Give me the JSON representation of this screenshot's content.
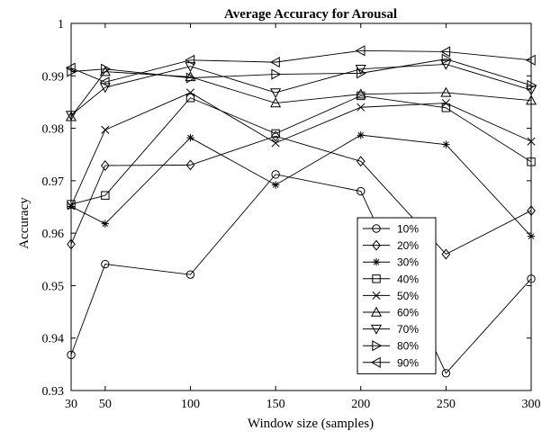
{
  "chart_data": {
    "type": "line",
    "title": "Average Accuracy for Arousal",
    "xlabel": "Window size (samples)",
    "ylabel": "Accuracy",
    "x": [
      30,
      50,
      100,
      150,
      200,
      250,
      300
    ],
    "xlim": [
      30,
      300
    ],
    "ylim": [
      0.93,
      1.0
    ],
    "xticks": [
      "30",
      "50",
      "100",
      "150",
      "200",
      "250",
      "300"
    ],
    "yticks": [
      "0.93",
      "0.94",
      "0.95",
      "0.96",
      "0.97",
      "0.98",
      "0.99",
      "1"
    ],
    "grid": false,
    "legend_position": "bottom-right",
    "series": [
      {
        "name": "10%",
        "marker": "circle",
        "values": [
          0.9368,
          0.9541,
          0.9521,
          0.9712,
          0.968,
          0.9333,
          0.9513
        ]
      },
      {
        "name": "20%",
        "marker": "diamond",
        "values": [
          0.9579,
          0.9729,
          0.973,
          0.9785,
          0.9737,
          0.956,
          0.9643
        ]
      },
      {
        "name": "30%",
        "marker": "asterisk",
        "values": [
          0.9651,
          0.9618,
          0.9782,
          0.9692,
          0.9787,
          0.9769,
          0.9594
        ]
      },
      {
        "name": "40%",
        "marker": "square",
        "values": [
          0.9655,
          0.9672,
          0.9858,
          0.979,
          0.9862,
          0.9839,
          0.9736
        ]
      },
      {
        "name": "50%",
        "marker": "x",
        "values": [
          0.9652,
          0.9797,
          0.9868,
          0.9772,
          0.984,
          0.9848,
          0.9775
        ]
      },
      {
        "name": "60%",
        "marker": "triangle-up",
        "values": [
          0.9822,
          0.9908,
          0.9898,
          0.9848,
          0.9865,
          0.9868,
          0.9853
        ]
      },
      {
        "name": "70%",
        "marker": "triangle-down",
        "values": [
          0.9825,
          0.9878,
          0.9918,
          0.9868,
          0.9913,
          0.9922,
          0.9873
        ]
      },
      {
        "name": "80%",
        "marker": "triangle-right",
        "values": [
          0.9908,
          0.9913,
          0.9896,
          0.9903,
          0.9905,
          0.9932,
          0.9882
        ]
      },
      {
        "name": "90%",
        "marker": "triangle-left",
        "values": [
          0.9915,
          0.9888,
          0.993,
          0.9926,
          0.9948,
          0.9946,
          0.993
        ]
      }
    ]
  }
}
